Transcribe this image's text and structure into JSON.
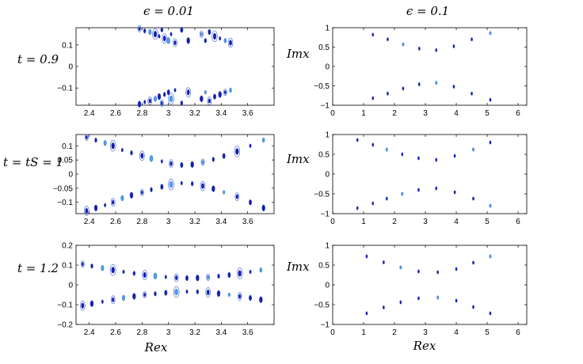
{
  "figure": {
    "column_titles": [
      "ϵ = 0.01",
      "ϵ = 0.1"
    ],
    "row_labels": [
      "t = 0.9",
      "t = t_S = 1",
      "t = 1.2"
    ],
    "row_labels_plain": [
      "t = 0.9",
      "t = tS = 1",
      "t = 1.2"
    ],
    "xlabel": "Rex",
    "ylabel": "Imx"
  },
  "colors": {
    "dark_blue": "#1a1aa8",
    "mid_blue": "#3c5fd0",
    "light_blue": "#4aa3e8",
    "axis": "#000000"
  },
  "chart_data": [
    {
      "type": "scatter",
      "panel": "left-row1",
      "title": "ϵ = 0.01",
      "row_label": "t = 0.9",
      "xlim": [
        2.3,
        3.8
      ],
      "ylim": [
        -0.18,
        0.18
      ],
      "xticks": [
        "2.4",
        "2.6",
        "2.8",
        "3",
        "3.2",
        "3.4",
        "3.6"
      ],
      "yticks": [
        "0.1",
        "0",
        "−0.1"
      ],
      "ytick_values": [
        0.1,
        0,
        -0.1
      ],
      "xtick_values": [
        2.4,
        2.6,
        2.8,
        3.0,
        3.2,
        3.4,
        3.6
      ],
      "points": [
        [
          2.78,
          0.175
        ],
        [
          2.82,
          0.165
        ],
        [
          2.86,
          0.16
        ],
        [
          2.9,
          0.15
        ],
        [
          2.93,
          0.14
        ],
        [
          2.95,
          0.17
        ],
        [
          2.97,
          0.13
        ],
        [
          3.0,
          0.12
        ],
        [
          3.02,
          0.15
        ],
        [
          3.05,
          0.11
        ],
        [
          3.1,
          0.17
        ],
        [
          3.15,
          0.12
        ],
        [
          3.25,
          0.15
        ],
        [
          3.28,
          0.12
        ],
        [
          3.31,
          0.16
        ],
        [
          3.35,
          0.14
        ],
        [
          3.39,
          0.13
        ],
        [
          3.43,
          0.12
        ],
        [
          3.47,
          0.11
        ],
        [
          2.78,
          -0.175
        ],
        [
          2.82,
          -0.165
        ],
        [
          2.86,
          -0.16
        ],
        [
          2.9,
          -0.15
        ],
        [
          2.93,
          -0.14
        ],
        [
          2.95,
          -0.17
        ],
        [
          2.97,
          -0.13
        ],
        [
          3.0,
          -0.12
        ],
        [
          3.02,
          -0.15
        ],
        [
          3.05,
          -0.11
        ],
        [
          3.1,
          -0.17
        ],
        [
          3.15,
          -0.12
        ],
        [
          3.25,
          -0.15
        ],
        [
          3.28,
          -0.12
        ],
        [
          3.31,
          -0.16
        ],
        [
          3.35,
          -0.14
        ],
        [
          3.39,
          -0.13
        ],
        [
          3.43,
          -0.12
        ],
        [
          3.47,
          -0.11
        ]
      ]
    },
    {
      "type": "scatter",
      "panel": "right-row1",
      "title": "ϵ = 0.1",
      "ylabel": "Imx",
      "xlim": [
        0,
        6.28
      ],
      "ylim": [
        -1,
        1
      ],
      "xticks": [
        "0",
        "1",
        "2",
        "3",
        "4",
        "5",
        "6"
      ],
      "xtick_values": [
        0,
        1,
        2,
        3,
        4,
        5,
        6
      ],
      "yticks": [
        "1",
        "0.5",
        "0",
        "−0.5",
        "−1"
      ],
      "ytick_values": [
        1,
        0.5,
        0,
        -0.5,
        -1
      ],
      "points": [
        [
          1.3,
          0.82
        ],
        [
          1.78,
          0.7
        ],
        [
          2.28,
          0.57
        ],
        [
          2.8,
          0.46
        ],
        [
          3.35,
          0.42
        ],
        [
          3.92,
          0.52
        ],
        [
          4.5,
          0.7
        ],
        [
          5.1,
          0.86
        ],
        [
          1.3,
          -0.82
        ],
        [
          1.78,
          -0.7
        ],
        [
          2.28,
          -0.57
        ],
        [
          2.8,
          -0.46
        ],
        [
          3.35,
          -0.42
        ],
        [
          3.92,
          -0.52
        ],
        [
          4.5,
          -0.7
        ],
        [
          5.1,
          -0.86
        ]
      ]
    },
    {
      "type": "scatter",
      "panel": "left-row2",
      "row_label": "t = t_S = 1",
      "xlim": [
        2.3,
        3.8
      ],
      "ylim": [
        -0.14,
        0.14
      ],
      "xticks": [
        "2.4",
        "2.6",
        "2.8",
        "3",
        "3.2",
        "3.4",
        "3.6"
      ],
      "xtick_values": [
        2.4,
        2.6,
        2.8,
        3.0,
        3.2,
        3.4,
        3.6
      ],
      "yticks": [
        "0.1",
        "0.05",
        "0",
        "−0.05",
        "−0.1"
      ],
      "ytick_values": [
        0.1,
        0.05,
        0,
        -0.05,
        -0.1
      ],
      "points": [
        [
          2.38,
          0.13
        ],
        [
          2.45,
          0.12
        ],
        [
          2.52,
          0.11
        ],
        [
          2.58,
          0.1
        ],
        [
          2.65,
          0.085
        ],
        [
          2.72,
          0.075
        ],
        [
          2.8,
          0.065
        ],
        [
          2.87,
          0.055
        ],
        [
          2.95,
          0.045
        ],
        [
          3.02,
          0.037
        ],
        [
          3.1,
          0.032
        ],
        [
          3.18,
          0.034
        ],
        [
          3.26,
          0.042
        ],
        [
          3.34,
          0.052
        ],
        [
          3.42,
          0.064
        ],
        [
          3.52,
          0.08
        ],
        [
          3.62,
          0.1
        ],
        [
          3.72,
          0.12
        ],
        [
          2.38,
          -0.13
        ],
        [
          2.45,
          -0.12
        ],
        [
          2.52,
          -0.11
        ],
        [
          2.58,
          -0.1
        ],
        [
          2.65,
          -0.085
        ],
        [
          2.72,
          -0.075
        ],
        [
          2.8,
          -0.065
        ],
        [
          2.87,
          -0.055
        ],
        [
          2.95,
          -0.045
        ],
        [
          3.02,
          -0.037
        ],
        [
          3.1,
          -0.032
        ],
        [
          3.18,
          -0.034
        ],
        [
          3.26,
          -0.042
        ],
        [
          3.34,
          -0.052
        ],
        [
          3.42,
          -0.064
        ],
        [
          3.52,
          -0.08
        ],
        [
          3.62,
          -0.1
        ],
        [
          3.72,
          -0.12
        ]
      ]
    },
    {
      "type": "scatter",
      "panel": "right-row2",
      "ylabel": "Imx",
      "xlim": [
        0,
        6.28
      ],
      "ylim": [
        -1,
        1
      ],
      "xticks": [
        "0",
        "1",
        "2",
        "3",
        "4",
        "5",
        "6"
      ],
      "xtick_values": [
        0,
        1,
        2,
        3,
        4,
        5,
        6
      ],
      "yticks": [
        "1",
        "0.5",
        "0",
        "−0.5",
        "−1"
      ],
      "ytick_values": [
        1,
        0.5,
        0,
        -0.5,
        -1
      ],
      "points": [
        [
          0.8,
          0.86
        ],
        [
          1.3,
          0.74
        ],
        [
          1.75,
          0.62
        ],
        [
          2.25,
          0.5
        ],
        [
          2.78,
          0.4
        ],
        [
          3.35,
          0.36
        ],
        [
          3.95,
          0.46
        ],
        [
          4.55,
          0.62
        ],
        [
          5.1,
          0.8
        ],
        [
          0.8,
          -0.86
        ],
        [
          1.3,
          -0.74
        ],
        [
          1.75,
          -0.62
        ],
        [
          2.25,
          -0.5
        ],
        [
          2.78,
          -0.4
        ],
        [
          3.35,
          -0.36
        ],
        [
          3.95,
          -0.46
        ],
        [
          4.55,
          -0.62
        ],
        [
          5.1,
          -0.8
        ]
      ]
    },
    {
      "type": "scatter",
      "panel": "left-row3",
      "row_label": "t = 1.2",
      "xlabel": "Rex",
      "xlim": [
        2.3,
        3.8
      ],
      "ylim": [
        -0.2,
        0.2
      ],
      "xticks": [
        "2.4",
        "2.6",
        "2.8",
        "3",
        "3.2",
        "3.4",
        "3.6"
      ],
      "xtick_values": [
        2.4,
        2.6,
        2.8,
        3.0,
        3.2,
        3.4,
        3.6
      ],
      "yticks": [
        "0.2",
        "0.1",
        "0",
        "−0.1",
        "−0.2"
      ],
      "ytick_values": [
        0.2,
        0.1,
        0,
        -0.1,
        -0.2
      ],
      "points": [
        [
          2.35,
          0.105
        ],
        [
          2.42,
          0.095
        ],
        [
          2.5,
          0.085
        ],
        [
          2.58,
          0.075
        ],
        [
          2.66,
          0.066
        ],
        [
          2.74,
          0.058
        ],
        [
          2.82,
          0.05
        ],
        [
          2.9,
          0.045
        ],
        [
          2.98,
          0.04
        ],
        [
          3.06,
          0.036
        ],
        [
          3.14,
          0.034
        ],
        [
          3.22,
          0.035
        ],
        [
          3.3,
          0.038
        ],
        [
          3.38,
          0.044
        ],
        [
          3.46,
          0.05
        ],
        [
          3.54,
          0.058
        ],
        [
          3.62,
          0.066
        ],
        [
          3.7,
          0.075
        ],
        [
          2.35,
          -0.105
        ],
        [
          2.42,
          -0.095
        ],
        [
          2.5,
          -0.085
        ],
        [
          2.58,
          -0.075
        ],
        [
          2.66,
          -0.066
        ],
        [
          2.74,
          -0.058
        ],
        [
          2.82,
          -0.05
        ],
        [
          2.9,
          -0.045
        ],
        [
          2.98,
          -0.04
        ],
        [
          3.06,
          -0.036
        ],
        [
          3.14,
          -0.034
        ],
        [
          3.22,
          -0.035
        ],
        [
          3.3,
          -0.038
        ],
        [
          3.38,
          -0.044
        ],
        [
          3.46,
          -0.05
        ],
        [
          3.54,
          -0.058
        ],
        [
          3.62,
          -0.066
        ],
        [
          3.7,
          -0.075
        ]
      ]
    },
    {
      "type": "scatter",
      "panel": "right-row3",
      "ylabel": "Imx",
      "xlabel": "Rex",
      "xlim": [
        0,
        6.28
      ],
      "ylim": [
        -1,
        1
      ],
      "xticks": [
        "0",
        "1",
        "2",
        "3",
        "4",
        "5",
        "6"
      ],
      "xtick_values": [
        0,
        1,
        2,
        3,
        4,
        5,
        6
      ],
      "yticks": [
        "1",
        "0.5",
        "0",
        "−0.5",
        "−1"
      ],
      "ytick_values": [
        1,
        0.5,
        0,
        -0.5,
        -1
      ],
      "points": [
        [
          1.1,
          0.72
        ],
        [
          1.65,
          0.57
        ],
        [
          2.2,
          0.44
        ],
        [
          2.78,
          0.34
        ],
        [
          3.4,
          0.32
        ],
        [
          4.0,
          0.4
        ],
        [
          4.55,
          0.56
        ],
        [
          5.1,
          0.72
        ],
        [
          1.1,
          -0.72
        ],
        [
          1.65,
          -0.57
        ],
        [
          2.2,
          -0.44
        ],
        [
          2.78,
          -0.34
        ],
        [
          3.4,
          -0.32
        ],
        [
          4.0,
          -0.4
        ],
        [
          4.55,
          -0.56
        ],
        [
          5.1,
          -0.72
        ]
      ]
    }
  ]
}
